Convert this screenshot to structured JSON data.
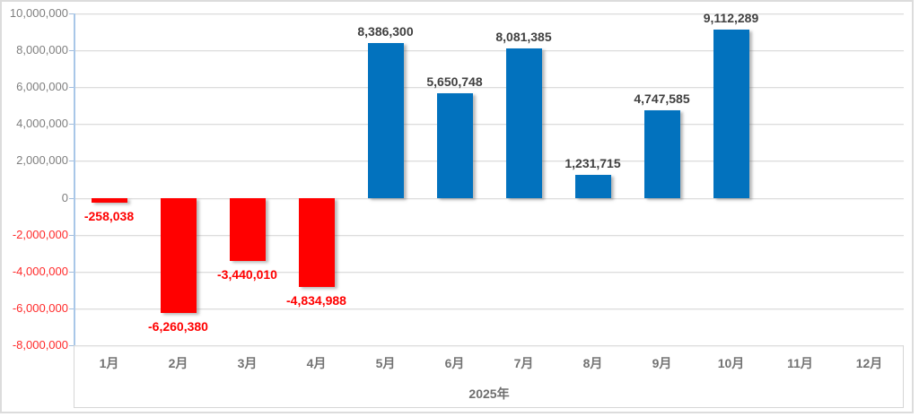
{
  "chart_data": {
    "type": "bar",
    "title": "",
    "xlabel": "2025年",
    "ylabel": "",
    "categories": [
      "1月",
      "2月",
      "3月",
      "4月",
      "5月",
      "6月",
      "7月",
      "8月",
      "9月",
      "10月",
      "11月",
      "12月"
    ],
    "values": [
      -258038,
      -6260380,
      -3440010,
      -4834988,
      8386300,
      5650748,
      8081385,
      1231715,
      4747585,
      9112289,
      null,
      null
    ],
    "data_labels": [
      "-258,038",
      "-6,260,380",
      "-3,440,010",
      "-4,834,988",
      "8,386,300",
      "5,650,748",
      "8,081,385",
      "1,231,715",
      "4,747,585",
      "9,112,289",
      "",
      ""
    ],
    "ylim": [
      -8000000,
      10000000
    ],
    "ytick_step": 2000000,
    "ytick_labels": [
      "10,000,000",
      "8,000,000",
      "6,000,000",
      "4,000,000",
      "2,000,000",
      "0",
      "-2,000,000",
      "-4,000,000",
      "-6,000,000",
      "-8,000,000"
    ],
    "grid": true,
    "legend": "none",
    "colors": {
      "positive_bar": "#0272BE",
      "negative_bar": "#FF0000",
      "positive_data_label": "#404040",
      "negative_data_label": "#FF0000",
      "axis_text": "#7F7F7F",
      "negative_axis_text": "#FF2B2B",
      "category_text": "#737373",
      "year_text": "#6E6E6E",
      "gridline": "#dcdcdc",
      "axis_line": "#A9C7E8",
      "tick_mark": "#A3BDDB",
      "separator": "#D6D6D6",
      "frame_border": "#dcdcdc"
    }
  }
}
